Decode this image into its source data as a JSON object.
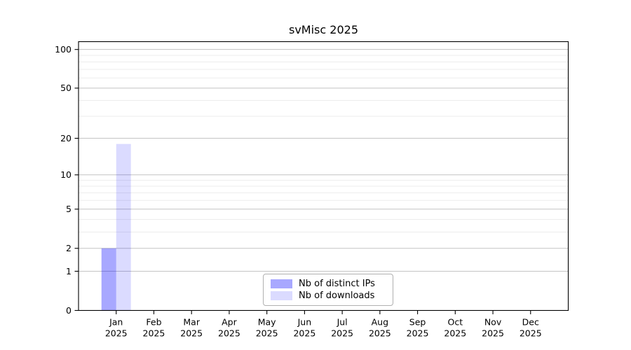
{
  "chart_data": {
    "type": "bar",
    "title": "svMisc 2025",
    "xlabel": "",
    "ylabel": "",
    "year_label": "2025",
    "categories": [
      "Jan",
      "Feb",
      "Mar",
      "Apr",
      "May",
      "Jun",
      "Jul",
      "Aug",
      "Sep",
      "Oct",
      "Nov",
      "Dec"
    ],
    "series": [
      {
        "name": "Nb of distinct IPs",
        "color": "#0000FF57",
        "values": [
          2,
          0,
          0,
          0,
          0,
          0,
          0,
          0,
          0,
          0,
          0,
          0
        ]
      },
      {
        "name": "Nb of downloads",
        "color": "#0000FF24",
        "values": [
          18,
          0,
          0,
          0,
          0,
          0,
          0,
          0,
          0,
          0,
          0,
          0
        ]
      }
    ],
    "y_axis": {
      "scale": "log1p",
      "ticks": [
        0,
        1,
        2,
        5,
        10,
        20,
        50,
        100
      ],
      "minor_gridlines": [
        3,
        4,
        6,
        7,
        8,
        9,
        30,
        40,
        60,
        70,
        80,
        90
      ],
      "ylim": [
        0,
        115
      ],
      "grid": true
    },
    "legend": {
      "position": "bottom-center"
    }
  }
}
